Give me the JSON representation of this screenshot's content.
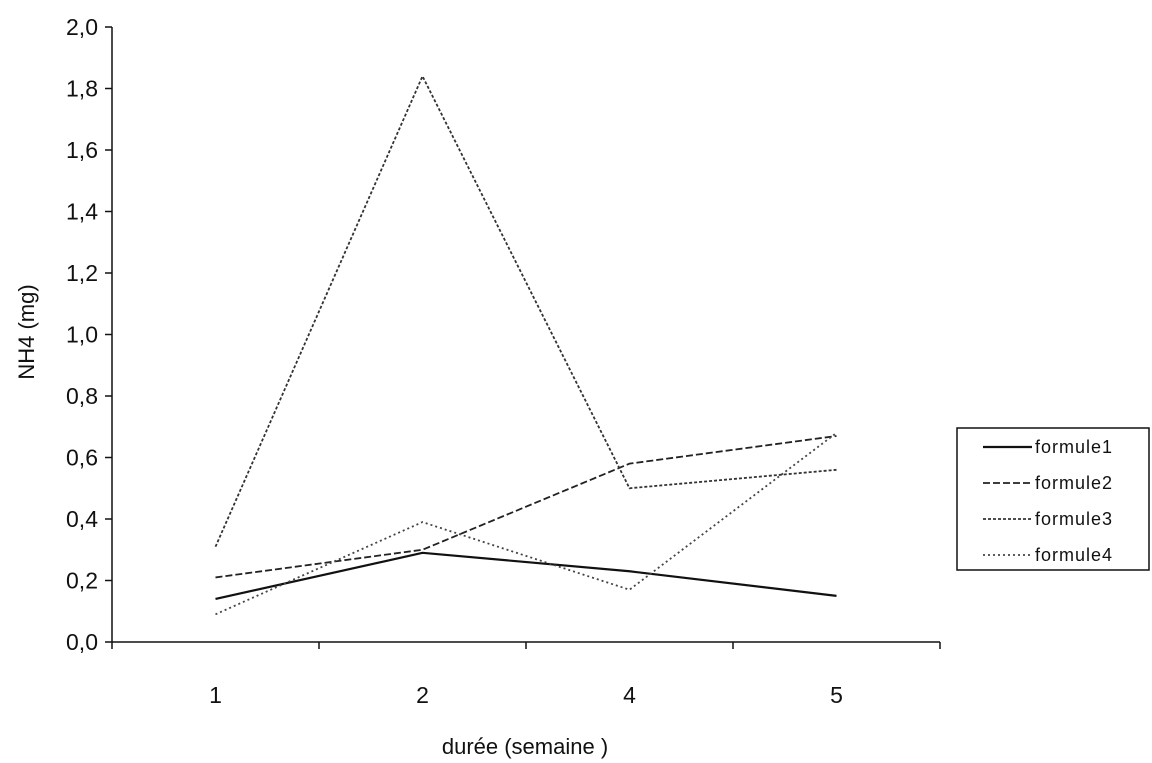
{
  "chart_data": {
    "type": "line",
    "xlabel": "durée (semaine )",
    "ylabel": "NH4 (mg)",
    "categories": [
      "1",
      "2",
      "4",
      "5"
    ],
    "ylim": [
      0,
      2.0
    ],
    "yticks": [
      "0,0",
      "0,2",
      "0,4",
      "0,6",
      "0,8",
      "1,0",
      "1,2",
      "1,4",
      "1,6",
      "1,8",
      "2,0"
    ],
    "grid": false,
    "legend_position": "right",
    "series": [
      {
        "name": "formule1",
        "values": [
          0.14,
          0.29,
          0.23,
          0.15
        ],
        "dash": "solid",
        "color": "#111111"
      },
      {
        "name": "formule2",
        "values": [
          0.21,
          0.3,
          0.58,
          0.67
        ],
        "dash": "dashed",
        "color": "#222222"
      },
      {
        "name": "formule3",
        "values": [
          0.31,
          1.84,
          0.5,
          0.56
        ],
        "dash": "dotted-dense",
        "color": "#333333"
      },
      {
        "name": "formule4",
        "values": [
          0.09,
          0.39,
          0.17,
          0.68
        ],
        "dash": "dotted",
        "color": "#444444"
      }
    ]
  }
}
